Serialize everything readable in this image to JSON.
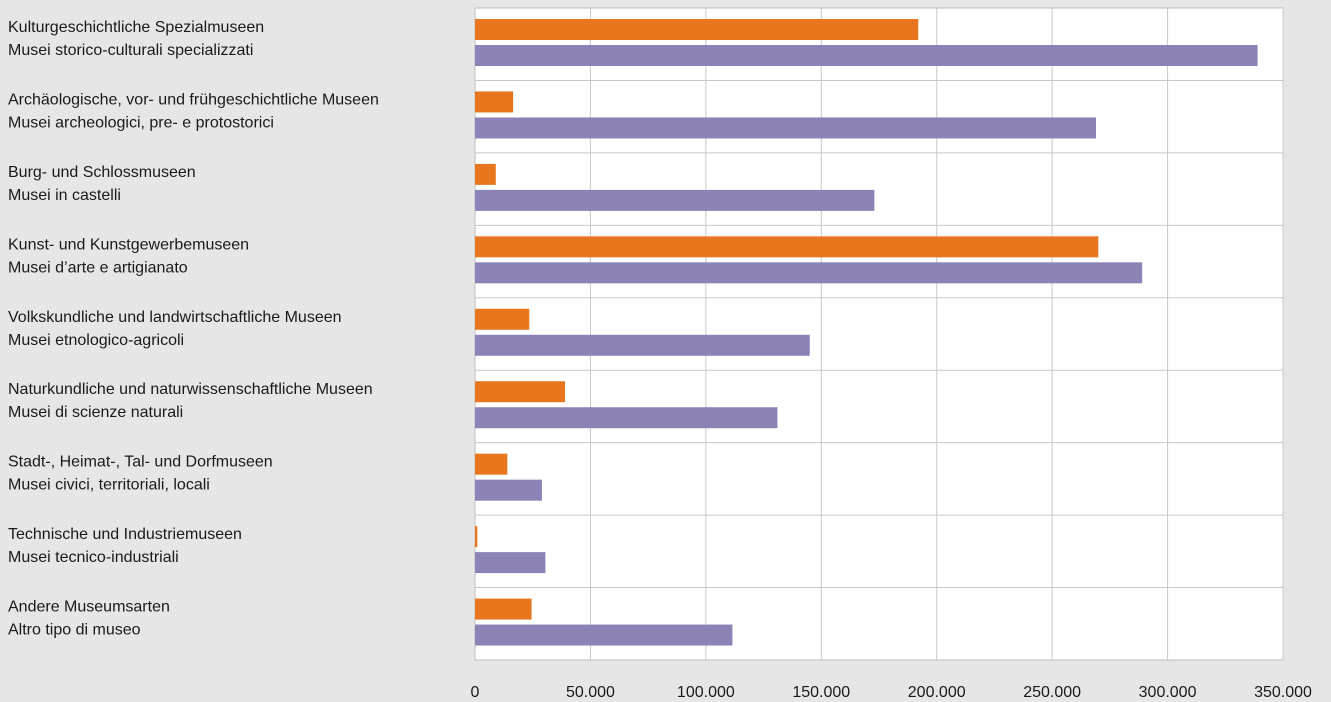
{
  "chart_data": {
    "type": "bar",
    "orientation": "horizontal",
    "categories": [
      [
        "Kulturgeschichtliche Spezialmuseen",
        "Musei storico-culturali specializzati"
      ],
      [
        "Archäologische, vor- und frühgeschichtliche Museen",
        "Musei archeologici, pre- e protostorici"
      ],
      [
        "Burg- und Schlossmuseen",
        "Musei in castelli"
      ],
      [
        "Kunst- und Kunstgewerbemuseen",
        "Musei d’arte e artigianato"
      ],
      [
        "Volkskundliche und landwirtschaftliche Museen",
        "Musei etnologico-agricoli"
      ],
      [
        "Naturkundliche und naturwissenschaftliche Museen",
        "Musei di scienze naturali"
      ],
      [
        "Stadt-, Heimat-, Tal- und Dorfmuseen",
        "Musei civici, territoriali, locali"
      ],
      [
        "Technische und Industriemuseen",
        "Musei tecnico-industriali"
      ],
      [
        "Andere Museumsarten",
        "Altro tipo di museo"
      ]
    ],
    "series": [
      {
        "color": "#e8761e",
        "values": [
          192000,
          16500,
          9000,
          270000,
          23500,
          39000,
          14000,
          1000,
          24500
        ]
      },
      {
        "color": "#8c82b6",
        "values": [
          339000,
          269000,
          173000,
          289000,
          145000,
          131000,
          29000,
          30500,
          111500
        ]
      }
    ],
    "xlim": [
      0,
      350000
    ],
    "xticks": [
      0,
      50000,
      100000,
      150000,
      200000,
      250000,
      300000,
      350000
    ],
    "xtick_labels": [
      "0",
      "50.000",
      "100.000",
      "150.000",
      "200.000",
      "250.000",
      "300.000",
      "350.000"
    ],
    "grid": true,
    "plot_background": "#ffffff",
    "page_background": "#e6e6e6"
  }
}
